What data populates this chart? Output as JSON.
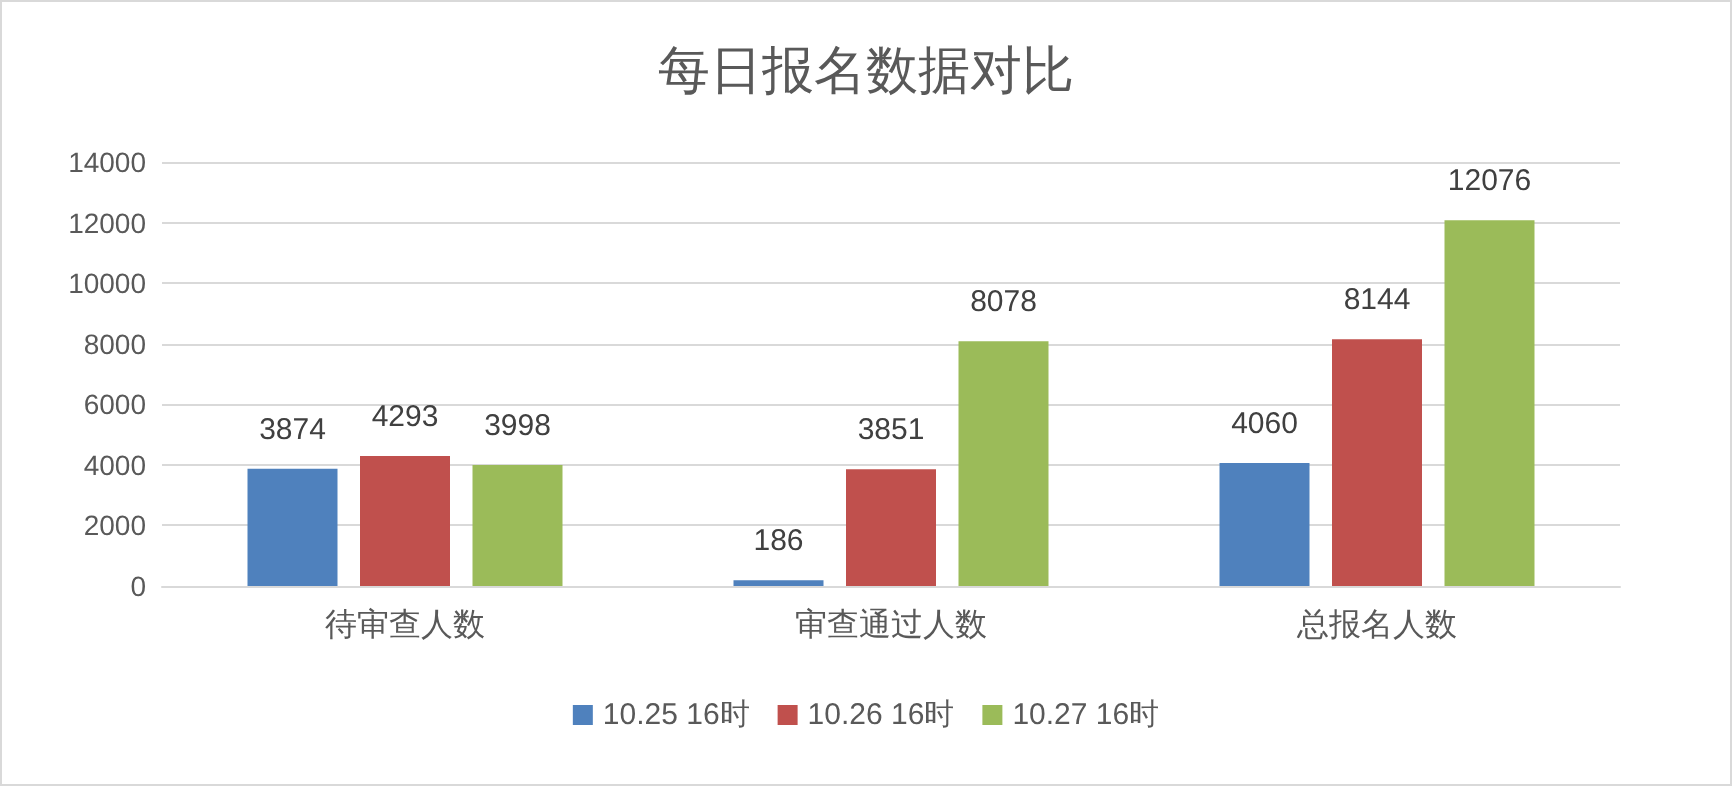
{
  "chart_data": {
    "type": "bar",
    "title": "每日报名数据对比",
    "categories": [
      "待审查人数",
      "审查通过人数",
      "总报名人数"
    ],
    "series": [
      {
        "name": "10.25 16时",
        "color": "#4f81bd",
        "values": [
          3874,
          186,
          4060
        ]
      },
      {
        "name": "10.26 16时",
        "color": "#c0504d",
        "values": [
          4293,
          3851,
          8144
        ]
      },
      {
        "name": "10.27 16时",
        "color": "#9bbb59",
        "values": [
          3998,
          8078,
          12076
        ]
      }
    ],
    "ylim": [
      0,
      14000
    ],
    "yticks": [
      0,
      2000,
      4000,
      6000,
      8000,
      10000,
      12000,
      14000
    ],
    "grid": "y",
    "legend": "bottom",
    "data_labels": true
  }
}
